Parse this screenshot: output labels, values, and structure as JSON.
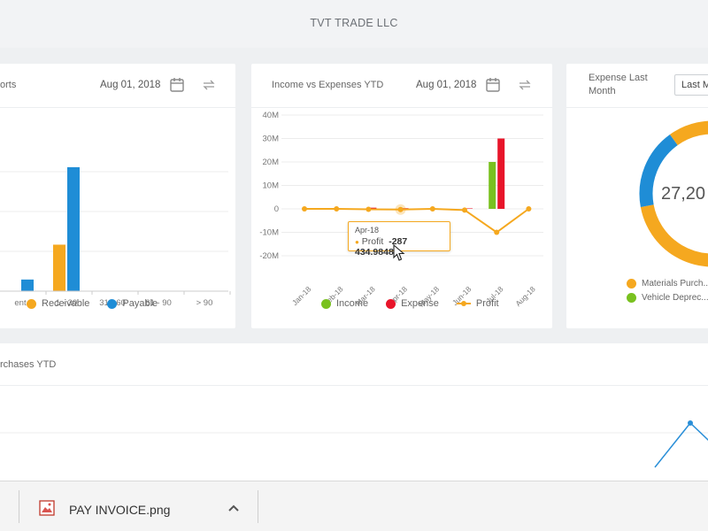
{
  "app": {
    "company_name": "TVT TRADE LLC"
  },
  "cards": {
    "aging": {
      "title": "orts",
      "date": "Aug 01, 2018",
      "calendar_icon": "calendar-icon",
      "refresh_icon": "refresh-icon"
    },
    "income_expenses": {
      "title": "Income vs Expenses YTD",
      "date": "Aug 01, 2018",
      "calendar_icon": "calendar-icon",
      "refresh_icon": "refresh-icon"
    },
    "expense_last_month": {
      "title_line1": "Expense Last",
      "title_line2": "Month",
      "select_value": "Last M",
      "center_value": "27,20",
      "legend": [
        "Materials Purch...",
        "Vehicle Deprec..."
      ]
    },
    "purchases": {
      "title": "rchases YTD"
    }
  },
  "tooltip": {
    "label": "Apr-18",
    "series": "Profit",
    "value": "-287 434.9848"
  },
  "download_bar": {
    "file_name": "PAY INVOICE.png",
    "file_icon": "image-file-icon",
    "menu_icon": "chevron-up-icon"
  },
  "colors": {
    "receivable": "#f5a81f",
    "payable": "#1f8dd6",
    "income": "#79c11f",
    "expense": "#e8152a",
    "profit": "#f5a81f",
    "vehicle": "#79c11f",
    "purchases_line": "#2a8fd8"
  },
  "chart_data": [
    {
      "type": "bar",
      "title": "",
      "categories": [
        "ent",
        "1 - 30",
        "31 - 60",
        "61 - 90",
        "> 90"
      ],
      "series": [
        {
          "name": "Receivable",
          "values": [
            0,
            12,
            0,
            0,
            0
          ]
        },
        {
          "name": "Payable",
          "values": [
            3,
            32,
            0,
            0,
            0
          ]
        }
      ],
      "ylim": [
        0,
        45
      ],
      "grid": true,
      "legend_position": "bottom"
    },
    {
      "type": "bar",
      "title": "Income vs Expenses YTD",
      "categories": [
        "Jan-18",
        "Feb-18",
        "Mar-18",
        "Apr-18",
        "May-18",
        "Jun-18",
        "Jul-18",
        "Aug-18"
      ],
      "series": [
        {
          "name": "Income",
          "type": "bar",
          "values": [
            0,
            0,
            0,
            0,
            0,
            0,
            20,
            0
          ]
        },
        {
          "name": "Expense",
          "type": "bar",
          "values": [
            0,
            0,
            0.5,
            0.3,
            0,
            0.2,
            30,
            0
          ]
        },
        {
          "name": "Profit",
          "type": "line",
          "values": [
            0,
            0,
            -0.2,
            -0.287434,
            0,
            -0.5,
            -10,
            0
          ]
        }
      ],
      "y_tick_labels": [
        "40M",
        "30M",
        "20M",
        "10M",
        "0",
        "-10M",
        "-20M"
      ],
      "ylim": [
        -20,
        40
      ],
      "grid": true,
      "legend_position": "bottom"
    },
    {
      "type": "pie",
      "title": "Expense Last Month",
      "categories": [
        "Materials Purch...",
        "Vehicle Deprec..."
      ],
      "values": [
        82,
        18
      ],
      "legend_position": "bottom"
    }
  ]
}
